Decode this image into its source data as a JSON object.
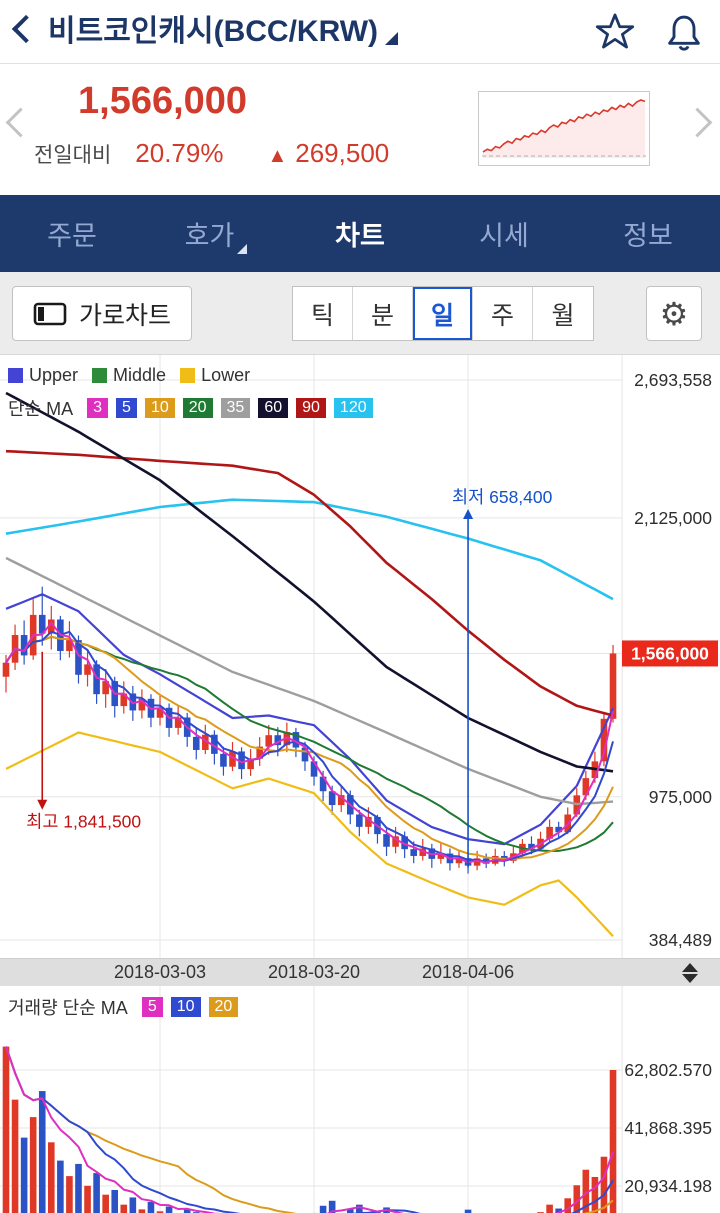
{
  "header": {
    "title": "비트코인캐시(BCC/KRW)"
  },
  "price_summary": {
    "price": "1,566,000",
    "change_label": "전일대비",
    "change_pct": "20.79%",
    "change_arrow": "▲",
    "change_amount": "269,500",
    "sparkline": [
      18,
      22,
      20,
      26,
      24,
      30,
      34,
      31,
      38,
      36,
      42,
      40,
      46,
      44,
      50,
      47,
      54,
      58,
      55,
      62,
      60,
      66,
      63,
      70,
      68,
      74,
      71,
      77,
      74,
      80,
      78,
      84,
      81,
      87,
      84,
      90,
      86,
      92,
      95,
      93
    ]
  },
  "nav": {
    "items": [
      {
        "key": "order",
        "label": "주문"
      },
      {
        "key": "orderbook",
        "label": "호가",
        "has_dropdown": true
      },
      {
        "key": "chart",
        "label": "차트",
        "active": true
      },
      {
        "key": "market",
        "label": "시세"
      },
      {
        "key": "info",
        "label": "정보"
      }
    ]
  },
  "toolbar": {
    "landscape_label": "가로차트",
    "periods": [
      {
        "key": "tick",
        "label": "틱"
      },
      {
        "key": "min",
        "label": "분"
      },
      {
        "key": "day",
        "label": "일",
        "selected": true
      },
      {
        "key": "week",
        "label": "주"
      },
      {
        "key": "month",
        "label": "월"
      }
    ],
    "gear_icon": "⚙"
  },
  "chart_data": [
    {
      "type": "candlestick",
      "title": "BCC/KRW daily candles with Bollinger bands and simple moving averages",
      "ylim": [
        384489,
        2693558
      ],
      "grid": true,
      "y_axis_labels": [
        {
          "text": "2,693,558",
          "value": 2693558
        },
        {
          "text": "2,125,000",
          "value": 2125000
        },
        {
          "text": "975,000",
          "value": 975000
        },
        {
          "text": "384,489",
          "value": 384489
        }
      ],
      "current_price": {
        "text": "1,566,000",
        "value": 1566000,
        "color": "#e8291b"
      },
      "x_ticks": [
        {
          "label": "2018-03-03",
          "index": 17
        },
        {
          "label": "2018-03-20",
          "index": 34
        },
        {
          "label": "2018-04-06",
          "index": 51
        }
      ],
      "annotations": [
        {
          "type": "high",
          "label": "최고 1,841,500",
          "index": 4,
          "value": 1841500,
          "color": "#c11212"
        },
        {
          "type": "low",
          "label": "최저 658,400",
          "index": 51,
          "value": 658400,
          "color": "#1552c8"
        }
      ],
      "legend": {
        "bands": [
          {
            "key": "upper",
            "label": "Upper",
            "color": "#4343d4"
          },
          {
            "key": "middle",
            "label": "Middle",
            "color": "#2e8b3a"
          },
          {
            "key": "lower",
            "label": "Lower",
            "color": "#efbd16"
          }
        ],
        "ma_label": "단순 MA",
        "ma_items": [
          {
            "label": "3",
            "color": "#df2fc0"
          },
          {
            "label": "5",
            "color": "#2f49d1"
          },
          {
            "label": "10",
            "color": "#dd9b1b"
          },
          {
            "label": "20",
            "color": "#1f7a33"
          },
          {
            "label": "35",
            "color": "#9e9e9e"
          },
          {
            "label": "60",
            "color": "#12122e"
          },
          {
            "label": "90",
            "color": "#b11616"
          },
          {
            "label": "120",
            "color": "#27c2ef"
          }
        ]
      },
      "colors": {
        "up": "#df3826",
        "down": "#2b53c5",
        "grid": "#e6e6e6",
        "axis_text": "#2e2e2e"
      },
      "candles": [
        [
          1470000,
          1560000,
          1405000,
          1528000
        ],
        [
          1528000,
          1685000,
          1498000,
          1642000
        ],
        [
          1642000,
          1702000,
          1520000,
          1558000
        ],
        [
          1558000,
          1790000,
          1540000,
          1725000
        ],
        [
          1725000,
          1841500,
          1598000,
          1648000
        ],
        [
          1648000,
          1762000,
          1582000,
          1706000
        ],
        [
          1706000,
          1721000,
          1538000,
          1576000
        ],
        [
          1576000,
          1699000,
          1549000,
          1621000
        ],
        [
          1621000,
          1640000,
          1442000,
          1478000
        ],
        [
          1478000,
          1582000,
          1430000,
          1521000
        ],
        [
          1521000,
          1538000,
          1358000,
          1398000
        ],
        [
          1398000,
          1502000,
          1342000,
          1452000
        ],
        [
          1452000,
          1470000,
          1302000,
          1349000
        ],
        [
          1349000,
          1451000,
          1318000,
          1401000
        ],
        [
          1401000,
          1432000,
          1288000,
          1331000
        ],
        [
          1331000,
          1418000,
          1298000,
          1379000
        ],
        [
          1379000,
          1398000,
          1262000,
          1301000
        ],
        [
          1301000,
          1392000,
          1269000,
          1342000
        ],
        [
          1342000,
          1360000,
          1222000,
          1259000
        ],
        [
          1259000,
          1348000,
          1231000,
          1302000
        ],
        [
          1302000,
          1321000,
          1181000,
          1222000
        ],
        [
          1222000,
          1262000,
          1129000,
          1168000
        ],
        [
          1168000,
          1272000,
          1151000,
          1231000
        ],
        [
          1231000,
          1249000,
          1108000,
          1152000
        ],
        [
          1152000,
          1181000,
          1062000,
          1099000
        ],
        [
          1099000,
          1201000,
          1081000,
          1162000
        ],
        [
          1162000,
          1179000,
          1048000,
          1089000
        ],
        [
          1089000,
          1172000,
          1061000,
          1132000
        ],
        [
          1132000,
          1221000,
          1102000,
          1182000
        ],
        [
          1182000,
          1271000,
          1148000,
          1229000
        ],
        [
          1229000,
          1262000,
          1142000,
          1188000
        ],
        [
          1188000,
          1281000,
          1159000,
          1242000
        ],
        [
          1242000,
          1259000,
          1139000,
          1178000
        ],
        [
          1178000,
          1202000,
          1082000,
          1121000
        ],
        [
          1121000,
          1142000,
          1021000,
          1058000
        ],
        [
          1058000,
          1082000,
          958000,
          998000
        ],
        [
          998000,
          1021000,
          901000,
          941000
        ],
        [
          941000,
          1022000,
          912000,
          982000
        ],
        [
          982000,
          1001000,
          862000,
          902000
        ],
        [
          902000,
          921000,
          812000,
          851000
        ],
        [
          851000,
          932000,
          822000,
          892000
        ],
        [
          892000,
          901000,
          782000,
          821000
        ],
        [
          821000,
          842000,
          731000,
          769000
        ],
        [
          769000,
          851000,
          742000,
          812000
        ],
        [
          812000,
          832000,
          722000,
          759000
        ],
        [
          759000,
          791000,
          701000,
          731000
        ],
        [
          731000,
          801000,
          712000,
          762000
        ],
        [
          762000,
          781000,
          682000,
          719000
        ],
        [
          719000,
          782000,
          699000,
          741000
        ],
        [
          741000,
          762000,
          671000,
          701000
        ],
        [
          701000,
          752000,
          682000,
          722000
        ],
        [
          722000,
          731000,
          658400,
          691000
        ],
        [
          691000,
          752000,
          672000,
          721000
        ],
        [
          721000,
          741000,
          681000,
          699000
        ],
        [
          699000,
          761000,
          691000,
          731000
        ],
        [
          731000,
          751000,
          688000,
          711000
        ],
        [
          711000,
          772000,
          701000,
          742000
        ],
        [
          742000,
          801000,
          721000,
          781000
        ],
        [
          781000,
          812000,
          738000,
          761000
        ],
        [
          761000,
          831000,
          751000,
          802000
        ],
        [
          802000,
          881000,
          791000,
          851000
        ],
        [
          851000,
          872000,
          808000,
          829000
        ],
        [
          829000,
          931000,
          821000,
          902000
        ],
        [
          902000,
          1011000,
          892000,
          981000
        ],
        [
          981000,
          1082000,
          962000,
          1052000
        ],
        [
          1052000,
          1161000,
          1032000,
          1121000
        ],
        [
          1121000,
          1322000,
          1101000,
          1296500
        ],
        [
          1296500,
          1601000,
          1281000,
          1566000
        ]
      ],
      "overlays": {
        "ma_computed": [
          {
            "period": 20,
            "color": "#1f7a33"
          },
          {
            "period": 10,
            "color": "#dd9b1b"
          },
          {
            "period": 5,
            "color": "#2f49d1"
          },
          {
            "period": 3,
            "color": "#df2fc0"
          }
        ],
        "lines": [
          {
            "name": "bollinger-lower",
            "color": "#efbd16",
            "width": 2.2,
            "points": [
              [
                0,
                1090000
              ],
              [
                8,
                1240000
              ],
              [
                17,
                1160000
              ],
              [
                25,
                1010000
              ],
              [
                29,
                1050000
              ],
              [
                34,
                990000
              ],
              [
                38,
                830000
              ],
              [
                42,
                700000
              ],
              [
                47,
                620000
              ],
              [
                51,
                560000
              ],
              [
                55,
                530000
              ],
              [
                59,
                610000
              ],
              [
                61,
                630000
              ],
              [
                63,
                560000
              ],
              [
                67,
                400000
              ]
            ]
          },
          {
            "name": "bollinger-upper",
            "color": "#4343d4",
            "width": 2.2,
            "points": [
              [
                0,
                1750000
              ],
              [
                4,
                1810000
              ],
              [
                8,
                1740000
              ],
              [
                13,
                1560000
              ],
              [
                17,
                1480000
              ],
              [
                21,
                1390000
              ],
              [
                25,
                1300000
              ],
              [
                29,
                1310000
              ],
              [
                34,
                1270000
              ],
              [
                38,
                1130000
              ],
              [
                42,
                960000
              ],
              [
                47,
                850000
              ],
              [
                51,
                800000
              ],
              [
                55,
                780000
              ],
              [
                59,
                860000
              ],
              [
                63,
                1020000
              ],
              [
                67,
                1340000
              ]
            ]
          },
          {
            "name": "ma120",
            "color": "#27c2ef",
            "width": 2.6,
            "points": [
              [
                0,
                2060000
              ],
              [
                8,
                2110000
              ],
              [
                17,
                2170000
              ],
              [
                25,
                2200000
              ],
              [
                34,
                2190000
              ],
              [
                42,
                2130000
              ],
              [
                51,
                2040000
              ],
              [
                59,
                1950000
              ],
              [
                67,
                1790000
              ]
            ]
          },
          {
            "name": "ma90",
            "color": "#b11616",
            "width": 2.6,
            "points": [
              [
                0,
                2400000
              ],
              [
                8,
                2385000
              ],
              [
                17,
                2360000
              ],
              [
                25,
                2340000
              ],
              [
                30,
                2310000
              ],
              [
                34,
                2220000
              ],
              [
                38,
                2090000
              ],
              [
                42,
                1940000
              ],
              [
                47,
                1790000
              ],
              [
                51,
                1660000
              ],
              [
                55,
                1540000
              ],
              [
                59,
                1430000
              ],
              [
                63,
                1350000
              ],
              [
                67,
                1310000
              ]
            ]
          },
          {
            "name": "ma60",
            "color": "#12122e",
            "width": 2.6,
            "points": [
              [
                0,
                2640000
              ],
              [
                8,
                2480000
              ],
              [
                17,
                2280000
              ],
              [
                25,
                2050000
              ],
              [
                34,
                1780000
              ],
              [
                42,
                1510000
              ],
              [
                51,
                1300000
              ],
              [
                59,
                1160000
              ],
              [
                63,
                1100000
              ],
              [
                67,
                1080000
              ]
            ]
          },
          {
            "name": "ma35",
            "color": "#9e9e9e",
            "width": 2.4,
            "points": [
              [
                0,
                1960000
              ],
              [
                8,
                1810000
              ],
              [
                17,
                1640000
              ],
              [
                25,
                1490000
              ],
              [
                34,
                1370000
              ],
              [
                42,
                1240000
              ],
              [
                51,
                1090000
              ],
              [
                59,
                975000
              ],
              [
                63,
                945000
              ],
              [
                67,
                955000
              ]
            ]
          }
        ]
      }
    },
    {
      "type": "bar",
      "name": "volume",
      "legend_label": "거래량 단순 MA",
      "y_axis_labels": [
        {
          "text": "62,802.570",
          "value": 62802.57
        },
        {
          "text": "41,868.395",
          "value": 41868.395
        },
        {
          "text": "20,934.198",
          "value": 20934.198
        }
      ],
      "ma": [
        {
          "period": 5,
          "color": "#df2fc0"
        },
        {
          "period": 10,
          "color": "#2f49d1"
        },
        {
          "period": 20,
          "color": "#dd9b1b"
        }
      ],
      "values": [
        71250.32,
        52100.11,
        38400.25,
        45800.9,
        55200.48,
        36700.33,
        30100.2,
        24500.15,
        28900.6,
        21000.42,
        25600.8,
        17800.3,
        19500.25,
        14200.1,
        16800.5,
        12500.7,
        15200.3,
        11800.25,
        13500.4,
        10200.6,
        12800.35,
        11500.2,
        9800.15,
        10500.3,
        9200.4,
        8500.25,
        9800.1,
        7600.3,
        8900.2,
        10200.5,
        8100.35,
        7400.2,
        8600.4,
        9500.3,
        11200.6,
        13800.4,
        15600.2,
        10400.3,
        12600.5,
        14200.1,
        9800.25,
        11500.4,
        13200.3,
        8900.2,
        10600.15,
        7800.3,
        6900.4,
        9200.25,
        7500.1,
        8800.3,
        6700.2,
        12400.5,
        9600.3,
        7200.4,
        8500.2,
        6800.1,
        7900.3,
        9800.4,
        8200.25,
        11500.3,
        14200.5,
        12800.2,
        16500.4,
        21200.3,
        26800.5,
        24200.4,
        31500.2,
        62802.57
      ]
    }
  ]
}
